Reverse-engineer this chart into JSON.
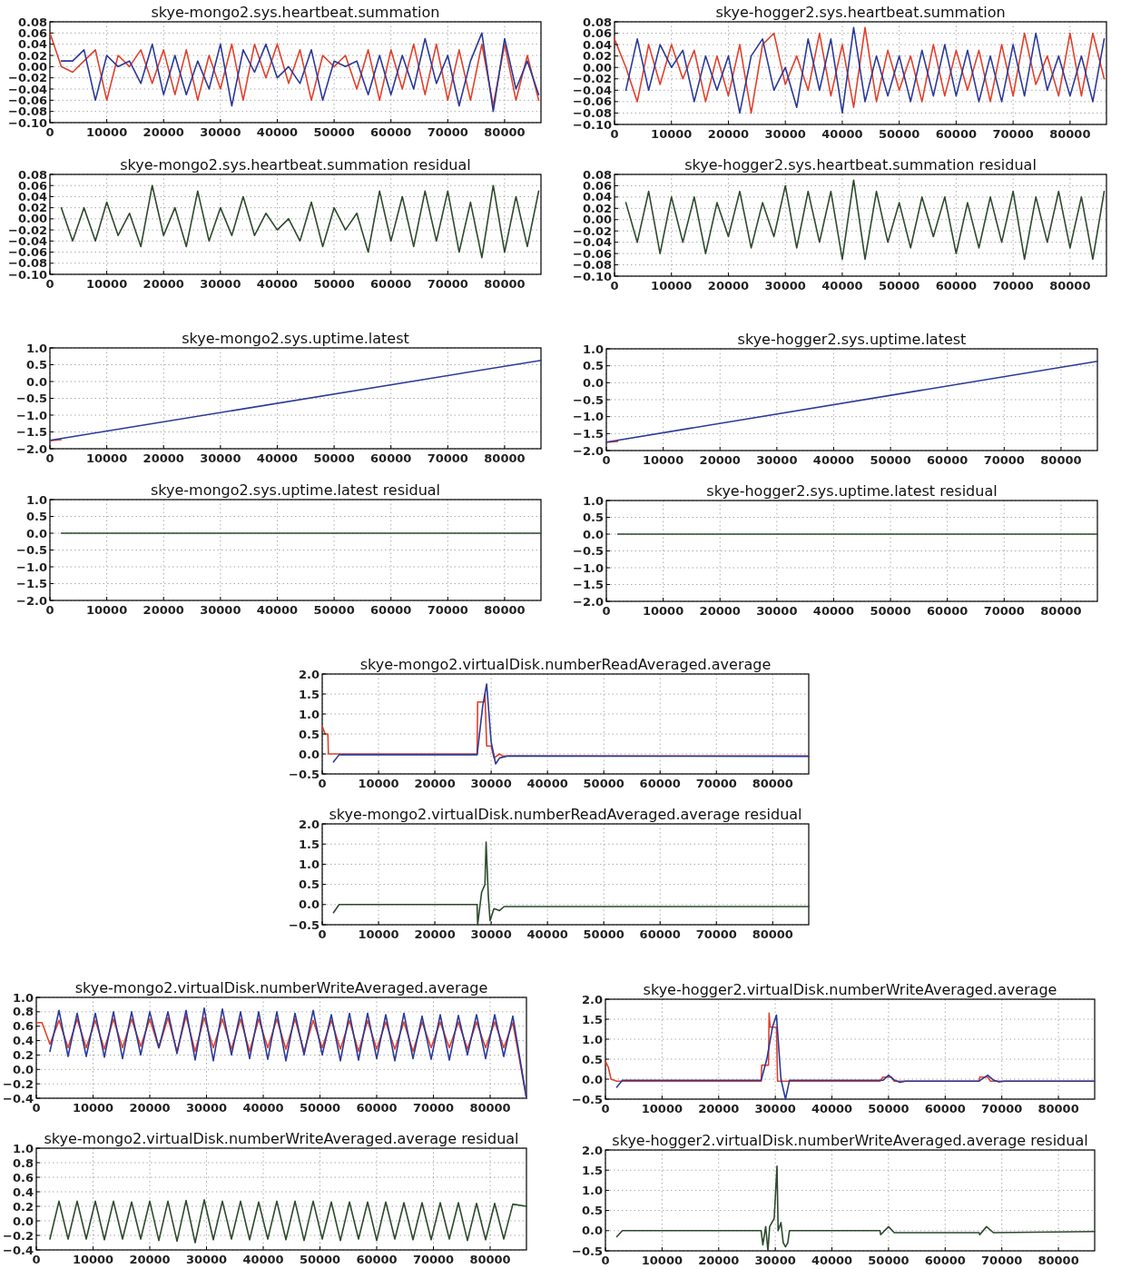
{
  "chart_data": [
    {
      "type": "line",
      "title": "skye-mongo2.sys.heartbeat.summation",
      "xlim": [
        0,
        86400
      ],
      "xticks": [
        0,
        10000,
        20000,
        30000,
        40000,
        50000,
        60000,
        70000,
        80000
      ],
      "ylim": [
        -0.1,
        0.08
      ],
      "yticks": [
        {
          "value": -0.1,
          "label": "−0.10"
        },
        {
          "value": -0.08,
          "label": "−0.08"
        },
        {
          "value": -0.06,
          "label": "−0.06"
        },
        {
          "value": -0.04,
          "label": "−0.04"
        },
        {
          "value": -0.02,
          "label": "−0.02"
        },
        {
          "value": 0,
          "label": "0.00"
        },
        {
          "value": 0.02,
          "label": "0.02"
        },
        {
          "value": 0.04,
          "label": "0.04"
        },
        {
          "value": 0.06,
          "label": "0.06"
        },
        {
          "value": 0.08,
          "label": "0.08"
        }
      ],
      "grid": true,
      "line_style": "solid",
      "series": [
        {
          "color": "#e0412c",
          "x": [
            0,
            2000,
            4000,
            6000,
            8000,
            10000,
            12000,
            14000,
            16000,
            18000,
            20000,
            22000,
            24000,
            26000,
            28000,
            30000,
            32000,
            34000,
            36000,
            38000,
            40000,
            42000,
            44000,
            46000,
            48000,
            50000,
            52000,
            54000,
            56000,
            58000,
            60000,
            62000,
            64000,
            66000,
            68000,
            70000,
            72000,
            74000,
            76000,
            78000,
            80000,
            82000,
            84000,
            86000
          ],
          "values": [
            0.06,
            0.0,
            -0.01,
            0.01,
            0.03,
            -0.06,
            0.02,
            0.0,
            0.03,
            -0.03,
            0.03,
            -0.05,
            0.03,
            -0.06,
            0.02,
            -0.04,
            0.04,
            -0.06,
            0.04,
            -0.02,
            0.04,
            -0.03,
            0.03,
            -0.06,
            0.02,
            0.0,
            0.02,
            -0.04,
            0.03,
            -0.06,
            0.03,
            -0.04,
            0.04,
            -0.05,
            0.04,
            -0.06,
            0.03,
            -0.06,
            0.04,
            -0.07,
            0.04,
            -0.06,
            0.02,
            -0.06
          ]
        },
        {
          "color": "#2b3a98",
          "x": [
            2000,
            4000,
            6000,
            8000,
            10000,
            12000,
            14000,
            16000,
            18000,
            20000,
            22000,
            24000,
            26000,
            28000,
            30000,
            32000,
            34000,
            36000,
            38000,
            40000,
            42000,
            44000,
            46000,
            48000,
            50000,
            52000,
            54000,
            56000,
            58000,
            60000,
            62000,
            64000,
            66000,
            68000,
            70000,
            72000,
            74000,
            76000,
            78000,
            80000,
            82000,
            84000,
            86000
          ],
          "values": [
            0.01,
            0.01,
            0.03,
            -0.06,
            0.02,
            0.0,
            0.01,
            -0.03,
            0.04,
            -0.05,
            0.02,
            -0.05,
            0.01,
            -0.04,
            0.04,
            -0.07,
            0.03,
            -0.01,
            0.04,
            -0.02,
            0.0,
            -0.03,
            0.03,
            -0.06,
            0.01,
            0.0,
            0.01,
            -0.05,
            0.02,
            -0.05,
            0.02,
            -0.04,
            0.05,
            -0.03,
            0.02,
            -0.07,
            0.01,
            0.06,
            -0.08,
            0.05,
            -0.04,
            0.01,
            -0.05
          ]
        }
      ]
    },
    {
      "type": "line",
      "title": "skye-hogger2.sys.heartbeat.summation",
      "xlim": [
        0,
        86400
      ],
      "xticks": [
        0,
        10000,
        20000,
        30000,
        40000,
        50000,
        60000,
        70000,
        80000
      ],
      "ylim": [
        -0.1,
        0.08
      ],
      "yticks": [
        {
          "value": -0.1,
          "label": "−0.10"
        },
        {
          "value": -0.08,
          "label": "−0.08"
        },
        {
          "value": -0.06,
          "label": "−0.06"
        },
        {
          "value": -0.04,
          "label": "−0.04"
        },
        {
          "value": -0.02,
          "label": "−0.02"
        },
        {
          "value": 0,
          "label": "0.00"
        },
        {
          "value": 0.02,
          "label": "0.02"
        },
        {
          "value": 0.04,
          "label": "0.04"
        },
        {
          "value": 0.06,
          "label": "0.06"
        },
        {
          "value": 0.08,
          "label": "0.08"
        }
      ],
      "grid": true,
      "line_style": "solid",
      "series": [
        {
          "color": "#e0412c",
          "x": [
            0,
            2000,
            4000,
            6000,
            8000,
            10000,
            12000,
            14000,
            16000,
            18000,
            20000,
            22000,
            24000,
            26000,
            28000,
            30000,
            32000,
            34000,
            36000,
            38000,
            40000,
            42000,
            44000,
            46000,
            48000,
            50000,
            52000,
            54000,
            56000,
            58000,
            60000,
            62000,
            64000,
            66000,
            68000,
            70000,
            72000,
            74000,
            76000,
            78000,
            80000,
            82000,
            84000,
            86000
          ],
          "values": [
            0.05,
            0.0,
            -0.06,
            0.04,
            -0.03,
            0.04,
            -0.02,
            0.03,
            -0.06,
            0.02,
            -0.05,
            0.04,
            -0.08,
            0.04,
            0.06,
            -0.03,
            0.02,
            -0.04,
            0.06,
            -0.05,
            0.04,
            -0.07,
            0.07,
            -0.06,
            0.03,
            -0.04,
            0.02,
            -0.06,
            0.04,
            -0.05,
            0.03,
            -0.04,
            0.03,
            -0.06,
            0.04,
            -0.05,
            0.06,
            -0.03,
            0.02,
            -0.05,
            0.06,
            -0.05,
            0.06,
            -0.02
          ]
        },
        {
          "color": "#2b3a98",
          "x": [
            2000,
            4000,
            6000,
            8000,
            10000,
            12000,
            14000,
            16000,
            18000,
            20000,
            22000,
            24000,
            26000,
            28000,
            30000,
            32000,
            34000,
            36000,
            38000,
            40000,
            42000,
            44000,
            46000,
            48000,
            50000,
            52000,
            54000,
            56000,
            58000,
            60000,
            62000,
            64000,
            66000,
            68000,
            70000,
            72000,
            74000,
            76000,
            78000,
            80000,
            82000,
            84000,
            86000
          ],
          "values": [
            -0.04,
            0.05,
            -0.04,
            0.04,
            0.0,
            0.03,
            -0.06,
            0.02,
            -0.04,
            0.02,
            -0.08,
            0.02,
            0.05,
            -0.04,
            0.0,
            -0.07,
            0.05,
            -0.04,
            0.05,
            -0.08,
            0.07,
            -0.06,
            0.02,
            -0.05,
            0.02,
            -0.06,
            0.03,
            -0.05,
            0.04,
            -0.05,
            0.03,
            -0.06,
            0.02,
            -0.06,
            0.04,
            -0.05,
            0.06,
            -0.04,
            0.02,
            -0.05,
            0.02,
            -0.06,
            0.05
          ]
        }
      ]
    },
    {
      "type": "line",
      "title": "skye-mongo2.sys.heartbeat.summation residual",
      "xlim": [
        0,
        86400
      ],
      "xticks": [
        0,
        10000,
        20000,
        30000,
        40000,
        50000,
        60000,
        70000,
        80000
      ],
      "ylim": [
        -0.1,
        0.08
      ],
      "yticks": [
        {
          "value": -0.1,
          "label": "−0.10"
        },
        {
          "value": -0.08,
          "label": "−0.08"
        },
        {
          "value": -0.06,
          "label": "−0.06"
        },
        {
          "value": -0.04,
          "label": "−0.04"
        },
        {
          "value": -0.02,
          "label": "−0.02"
        },
        {
          "value": 0,
          "label": "0.00"
        },
        {
          "value": 0.02,
          "label": "0.02"
        },
        {
          "value": 0.04,
          "label": "0.04"
        },
        {
          "value": 0.06,
          "label": "0.06"
        },
        {
          "value": 0.08,
          "label": "0.08"
        }
      ],
      "grid": true,
      "line_style": "solid",
      "series": [
        {
          "color": "#2e4a2e",
          "x": [
            2000,
            4000,
            6000,
            8000,
            10000,
            12000,
            14000,
            16000,
            18000,
            20000,
            22000,
            24000,
            26000,
            28000,
            30000,
            32000,
            34000,
            36000,
            38000,
            40000,
            42000,
            44000,
            46000,
            48000,
            50000,
            52000,
            54000,
            56000,
            58000,
            60000,
            62000,
            64000,
            66000,
            68000,
            70000,
            72000,
            74000,
            76000,
            78000,
            80000,
            82000,
            84000,
            86000
          ],
          "values": [
            0.02,
            -0.04,
            0.02,
            -0.04,
            0.03,
            -0.03,
            0.01,
            -0.05,
            0.06,
            -0.03,
            0.02,
            -0.05,
            0.05,
            -0.04,
            0.02,
            -0.03,
            0.04,
            -0.03,
            0.01,
            -0.02,
            0.0,
            -0.04,
            0.03,
            -0.05,
            0.02,
            -0.02,
            0.01,
            -0.06,
            0.05,
            -0.04,
            0.04,
            -0.05,
            0.05,
            -0.04,
            0.05,
            -0.06,
            0.03,
            -0.07,
            0.06,
            -0.06,
            0.04,
            -0.05,
            0.05
          ]
        }
      ]
    },
    {
      "type": "line",
      "title": "skye-hogger2.sys.heartbeat.summation residual",
      "xlim": [
        0,
        86400
      ],
      "xticks": [
        0,
        10000,
        20000,
        30000,
        40000,
        50000,
        60000,
        70000,
        80000
      ],
      "ylim": [
        -0.1,
        0.08
      ],
      "yticks": [
        {
          "value": -0.1,
          "label": "−0.10"
        },
        {
          "value": -0.08,
          "label": "−0.08"
        },
        {
          "value": -0.06,
          "label": "−0.06"
        },
        {
          "value": -0.04,
          "label": "−0.04"
        },
        {
          "value": -0.02,
          "label": "−0.02"
        },
        {
          "value": 0,
          "label": "0.00"
        },
        {
          "value": 0.02,
          "label": "0.02"
        },
        {
          "value": 0.04,
          "label": "0.04"
        },
        {
          "value": 0.06,
          "label": "0.06"
        },
        {
          "value": 0.08,
          "label": "0.08"
        }
      ],
      "grid": true,
      "line_style": "solid",
      "series": [
        {
          "color": "#2e4a2e",
          "x": [
            2000,
            4000,
            6000,
            8000,
            10000,
            12000,
            14000,
            16000,
            18000,
            20000,
            22000,
            24000,
            26000,
            28000,
            30000,
            32000,
            34000,
            36000,
            38000,
            40000,
            42000,
            44000,
            46000,
            48000,
            50000,
            52000,
            54000,
            56000,
            58000,
            60000,
            62000,
            64000,
            66000,
            68000,
            70000,
            72000,
            74000,
            76000,
            78000,
            80000,
            82000,
            84000,
            86000
          ],
          "values": [
            0.03,
            -0.04,
            0.05,
            -0.06,
            0.04,
            -0.04,
            0.04,
            -0.06,
            0.03,
            -0.03,
            0.05,
            -0.05,
            0.03,
            -0.03,
            0.06,
            -0.05,
            0.05,
            -0.04,
            0.05,
            -0.07,
            0.07,
            -0.07,
            0.05,
            -0.04,
            0.03,
            -0.05,
            0.04,
            -0.03,
            0.04,
            -0.06,
            0.03,
            -0.05,
            0.04,
            -0.04,
            0.05,
            -0.07,
            0.04,
            -0.04,
            0.05,
            -0.05,
            0.04,
            -0.07,
            0.05
          ]
        }
      ]
    },
    {
      "type": "line",
      "title": "skye-mongo2.sys.uptime.latest",
      "xlim": [
        0,
        86400
      ],
      "xticks": [
        0,
        10000,
        20000,
        30000,
        40000,
        50000,
        60000,
        70000,
        80000
      ],
      "ylim": [
        -2,
        1
      ],
      "yticks": [
        {
          "value": -2,
          "label": "−2.0"
        },
        {
          "value": -1.5,
          "label": "−1.5"
        },
        {
          "value": -1,
          "label": "−1.0"
        },
        {
          "value": -0.5,
          "label": "−0.5"
        },
        {
          "value": 0,
          "label": "0.0"
        },
        {
          "value": 0.5,
          "label": "0.5"
        },
        {
          "value": 1,
          "label": "1.0"
        }
      ],
      "grid": true,
      "line_style": "solid",
      "series": [
        {
          "color": "#e0412c",
          "x": [
            0,
            2000
          ],
          "values": [
            -1.76,
            -1.73
          ]
        },
        {
          "color": "#2b3a98",
          "x": [
            0,
            86400
          ],
          "values": [
            -1.75,
            0.63
          ]
        }
      ]
    },
    {
      "type": "line",
      "title": "skye-hogger2.sys.uptime.latest",
      "xlim": [
        0,
        86400
      ],
      "xticks": [
        0,
        10000,
        20000,
        30000,
        40000,
        50000,
        60000,
        70000,
        80000
      ],
      "ylim": [
        -2,
        1
      ],
      "yticks": [
        {
          "value": -2,
          "label": "−2.0"
        },
        {
          "value": -1.5,
          "label": "−1.5"
        },
        {
          "value": -1,
          "label": "−1.0"
        },
        {
          "value": -0.5,
          "label": "−0.5"
        },
        {
          "value": 0,
          "label": "0.0"
        },
        {
          "value": 0.5,
          "label": "0.5"
        },
        {
          "value": 1,
          "label": "1.0"
        }
      ],
      "grid": true,
      "line_style": "solid",
      "series": [
        {
          "color": "#e0412c",
          "x": [
            0,
            2000
          ],
          "values": [
            -1.76,
            -1.73
          ]
        },
        {
          "color": "#2b3a98",
          "x": [
            0,
            86400
          ],
          "values": [
            -1.75,
            0.63
          ]
        }
      ]
    },
    {
      "type": "line",
      "title": "skye-mongo2.sys.uptime.latest residual",
      "xlim": [
        0,
        86400
      ],
      "xticks": [
        0,
        10000,
        20000,
        30000,
        40000,
        50000,
        60000,
        70000,
        80000
      ],
      "ylim": [
        -2,
        1
      ],
      "yticks": [
        {
          "value": -2,
          "label": "−2.0"
        },
        {
          "value": -1.5,
          "label": "−1.5"
        },
        {
          "value": -1,
          "label": "−1.0"
        },
        {
          "value": -0.5,
          "label": "−0.5"
        },
        {
          "value": 0,
          "label": "0.0"
        },
        {
          "value": 0.5,
          "label": "0.5"
        },
        {
          "value": 1,
          "label": "1.0"
        }
      ],
      "grid": true,
      "line_style": "solid",
      "series": [
        {
          "color": "#2e4a2e",
          "x": [
            2000,
            86400
          ],
          "values": [
            0.0,
            0.0
          ]
        }
      ]
    },
    {
      "type": "line",
      "title": "skye-hogger2.sys.uptime.latest residual",
      "xlim": [
        0,
        86400
      ],
      "xticks": [
        0,
        10000,
        20000,
        30000,
        40000,
        50000,
        60000,
        70000,
        80000
      ],
      "ylim": [
        -2,
        1
      ],
      "yticks": [
        {
          "value": -2,
          "label": "−2.0"
        },
        {
          "value": -1.5,
          "label": "−1.5"
        },
        {
          "value": -1,
          "label": "−1.0"
        },
        {
          "value": -0.5,
          "label": "−0.5"
        },
        {
          "value": 0,
          "label": "0.0"
        },
        {
          "value": 0.5,
          "label": "0.5"
        },
        {
          "value": 1,
          "label": "1.0"
        }
      ],
      "grid": true,
      "line_style": "solid",
      "series": [
        {
          "color": "#2e4a2e",
          "x": [
            2000,
            86400
          ],
          "values": [
            0.0,
            0.0
          ]
        }
      ]
    },
    {
      "type": "line",
      "title": "skye-mongo2.virtualDisk.numberReadAveraged.average",
      "xlim": [
        0,
        86400
      ],
      "xticks": [
        0,
        10000,
        20000,
        30000,
        40000,
        50000,
        60000,
        70000,
        80000
      ],
      "ylim": [
        -0.5,
        2
      ],
      "yticks": [
        {
          "value": -0.5,
          "label": "−0.5"
        },
        {
          "value": 0,
          "label": "0.0"
        },
        {
          "value": 0.5,
          "label": "0.5"
        },
        {
          "value": 1,
          "label": "1.0"
        },
        {
          "value": 1.5,
          "label": "1.5"
        },
        {
          "value": 2,
          "label": "2.0"
        }
      ],
      "grid": true,
      "line_style": "solid",
      "series": [
        {
          "color": "#e0412c",
          "x": [
            0,
            500,
            1000,
            1100,
            27500,
            27600,
            28800,
            28900,
            29200,
            30000,
            30500,
            31500,
            32000,
            86400
          ],
          "values": [
            0.7,
            0.5,
            0.5,
            0.0,
            0.0,
            1.3,
            1.3,
            1.5,
            0.2,
            0.2,
            -0.1,
            0.0,
            -0.05,
            -0.05
          ]
        },
        {
          "color": "#2b3a98",
          "x": [
            2000,
            3000,
            27500,
            28500,
            29200,
            30000,
            30800,
            31500,
            33000,
            86400
          ],
          "values": [
            -0.2,
            -0.02,
            -0.02,
            1.2,
            1.75,
            0.3,
            -0.25,
            -0.1,
            -0.05,
            -0.06
          ]
        }
      ]
    },
    {
      "type": "line",
      "title": "skye-mongo2.virtualDisk.numberReadAveraged.average residual",
      "xlim": [
        0,
        86400
      ],
      "xticks": [
        0,
        10000,
        20000,
        30000,
        40000,
        50000,
        60000,
        70000,
        80000
      ],
      "ylim": [
        -0.5,
        2
      ],
      "yticks": [
        {
          "value": -0.5,
          "label": "−0.5"
        },
        {
          "value": 0,
          "label": "0.0"
        },
        {
          "value": 0.5,
          "label": "0.5"
        },
        {
          "value": 1,
          "label": "1.0"
        },
        {
          "value": 1.5,
          "label": "1.5"
        },
        {
          "value": 2,
          "label": "2.0"
        }
      ],
      "grid": true,
      "line_style": "solid",
      "series": [
        {
          "color": "#2e4a2e",
          "x": [
            2000,
            3000,
            27500,
            27600,
            28300,
            28900,
            29100,
            29500,
            29800,
            30500,
            31500,
            32300,
            86400
          ],
          "values": [
            -0.2,
            0.0,
            0.0,
            -0.5,
            0.3,
            0.5,
            1.55,
            0.2,
            -0.4,
            -0.1,
            -0.15,
            -0.05,
            -0.05
          ]
        }
      ]
    },
    {
      "type": "line",
      "title": "skye-mongo2.virtualDisk.numberWriteAveraged.average",
      "xlim": [
        0,
        86400
      ],
      "xticks": [
        0,
        10000,
        20000,
        30000,
        40000,
        50000,
        60000,
        70000,
        80000
      ],
      "ylim": [
        -0.4,
        1
      ],
      "yticks": [
        {
          "value": -0.4,
          "label": "−0.4"
        },
        {
          "value": -0.2,
          "label": "−0.2"
        },
        {
          "value": 0,
          "label": "0.0"
        },
        {
          "value": 0.2,
          "label": "0.2"
        },
        {
          "value": 0.4,
          "label": "0.4"
        },
        {
          "value": 0.6,
          "label": "0.6"
        },
        {
          "value": 0.8,
          "label": "0.8"
        },
        {
          "value": 1,
          "label": "1.0"
        }
      ],
      "grid": true,
      "line_style": "solid",
      "series": [
        {
          "color": "#e0412c",
          "x": [
            0,
            1000,
            2400,
            4000,
            5600,
            7200,
            8800,
            10400,
            12000,
            13600,
            15200,
            16800,
            18400,
            20000,
            21600,
            23200,
            24800,
            26400,
            28000,
            29600,
            31200,
            32800,
            34400,
            36000,
            37600,
            39200,
            40800,
            42400,
            44000,
            45600,
            47200,
            48800,
            50400,
            52000,
            53600,
            55200,
            56800,
            58400,
            60000,
            61600,
            63200,
            64800,
            66400,
            68000,
            69600,
            71200,
            72800,
            74400,
            76000,
            77600,
            79200,
            80800,
            82400,
            84000,
            86400
          ],
          "values": [
            0.65,
            0.65,
            0.35,
            0.68,
            0.3,
            0.7,
            0.3,
            0.68,
            0.28,
            0.7,
            0.3,
            0.7,
            0.32,
            0.7,
            0.3,
            0.72,
            0.25,
            0.74,
            0.25,
            0.72,
            0.3,
            0.7,
            0.28,
            0.7,
            0.25,
            0.7,
            0.3,
            0.7,
            0.28,
            0.7,
            0.25,
            0.68,
            0.3,
            0.68,
            0.28,
            0.68,
            0.25,
            0.68,
            0.28,
            0.66,
            0.28,
            0.66,
            0.25,
            0.66,
            0.3,
            0.66,
            0.3,
            0.66,
            0.28,
            0.66,
            0.3,
            0.66,
            0.3,
            0.65,
            -0.4
          ]
        },
        {
          "color": "#2b3a98",
          "x": [
            2400,
            4000,
            5600,
            7200,
            8800,
            10400,
            12000,
            13600,
            15200,
            16800,
            18400,
            20000,
            21600,
            23200,
            24800,
            26400,
            28000,
            29600,
            31200,
            32800,
            34400,
            36000,
            37600,
            39200,
            40800,
            42400,
            44000,
            45600,
            47200,
            48800,
            50400,
            52000,
            53600,
            55200,
            56800,
            58400,
            60000,
            61600,
            63200,
            64800,
            66400,
            68000,
            69600,
            71200,
            72800,
            74400,
            76000,
            77600,
            79200,
            80800,
            82400,
            84000,
            86400
          ],
          "values": [
            0.25,
            0.82,
            0.18,
            0.78,
            0.18,
            0.78,
            0.17,
            0.8,
            0.15,
            0.8,
            0.2,
            0.8,
            0.3,
            0.8,
            0.22,
            0.82,
            0.13,
            0.85,
            0.12,
            0.84,
            0.2,
            0.8,
            0.15,
            0.8,
            0.14,
            0.8,
            0.12,
            0.78,
            0.2,
            0.82,
            0.2,
            0.76,
            0.12,
            0.78,
            0.13,
            0.78,
            0.15,
            0.76,
            0.12,
            0.78,
            0.15,
            0.74,
            0.14,
            0.76,
            0.13,
            0.75,
            0.2,
            0.76,
            0.15,
            0.76,
            0.18,
            0.74,
            -0.4
          ]
        }
      ]
    },
    {
      "type": "line",
      "title": "skye-hogger2.virtualDisk.numberWriteAveraged.average",
      "xlim": [
        0,
        86400
      ],
      "xticks": [
        0,
        10000,
        20000,
        30000,
        40000,
        50000,
        60000,
        70000,
        80000
      ],
      "ylim": [
        -0.5,
        2
      ],
      "yticks": [
        {
          "value": -0.5,
          "label": "−0.5"
        },
        {
          "value": 0,
          "label": "0.0"
        },
        {
          "value": 0.5,
          "label": "0.5"
        },
        {
          "value": 1,
          "label": "1.0"
        },
        {
          "value": 1.5,
          "label": "1.5"
        },
        {
          "value": 2,
          "label": "2.0"
        }
      ],
      "grid": true,
      "line_style": "solid",
      "series": [
        {
          "color": "#e0412c",
          "x": [
            0,
            500,
            1000,
            2000,
            27500,
            27600,
            28800,
            28900,
            29100,
            30200,
            30400,
            48500,
            49000,
            50500,
            51000,
            66000,
            66100,
            67500,
            68000,
            86400
          ],
          "values": [
            0.45,
            0.3,
            0.0,
            -0.05,
            -0.05,
            0.35,
            0.35,
            1.65,
            1.3,
            1.3,
            -0.05,
            -0.05,
            0.05,
            0.05,
            -0.05,
            -0.05,
            0.05,
            0.05,
            -0.05,
            -0.05
          ]
        },
        {
          "color": "#2b3a98",
          "x": [
            2000,
            3000,
            27500,
            28500,
            29500,
            30200,
            31000,
            31800,
            32500,
            49000,
            50000,
            51000,
            52000,
            53000,
            66000,
            67500,
            68500,
            69500,
            70500,
            86400
          ],
          "values": [
            -0.2,
            -0.03,
            -0.03,
            0.5,
            1.3,
            1.6,
            0.0,
            -0.5,
            -0.03,
            -0.03,
            0.1,
            -0.02,
            -0.08,
            -0.05,
            -0.05,
            0.1,
            -0.02,
            -0.07,
            -0.05,
            -0.05
          ]
        }
      ]
    },
    {
      "type": "line",
      "title": "skye-mongo2.virtualDisk.numberWriteAveraged.average residual",
      "xlim": [
        0,
        86400
      ],
      "xticks": [
        0,
        10000,
        20000,
        30000,
        40000,
        50000,
        60000,
        70000,
        80000
      ],
      "ylim": [
        -0.4,
        1
      ],
      "yticks": [
        {
          "value": -0.4,
          "label": "−0.4"
        },
        {
          "value": -0.2,
          "label": "−0.2"
        },
        {
          "value": 0,
          "label": "0.0"
        },
        {
          "value": 0.2,
          "label": "0.2"
        },
        {
          "value": 0.4,
          "label": "0.4"
        },
        {
          "value": 0.6,
          "label": "0.6"
        },
        {
          "value": 0.8,
          "label": "0.8"
        },
        {
          "value": 1,
          "label": "1.0"
        }
      ],
      "grid": true,
      "line_style": "solid",
      "series": [
        {
          "color": "#2e4a2e",
          "x": [
            2400,
            4000,
            5600,
            7200,
            8800,
            10400,
            12000,
            13600,
            15200,
            16800,
            18400,
            20000,
            21600,
            23200,
            24800,
            26400,
            28000,
            29600,
            31200,
            32800,
            34400,
            36000,
            37600,
            39200,
            40800,
            42400,
            44000,
            45600,
            47200,
            48800,
            50400,
            52000,
            53600,
            55200,
            56800,
            58400,
            60000,
            61600,
            63200,
            64800,
            66400,
            68000,
            69600,
            71200,
            72800,
            74400,
            76000,
            77600,
            79200,
            80800,
            82400,
            84000,
            86400
          ],
          "values": [
            -0.25,
            0.27,
            -0.25,
            0.27,
            -0.25,
            0.27,
            -0.26,
            0.27,
            -0.25,
            0.26,
            -0.25,
            0.27,
            -0.27,
            0.27,
            -0.28,
            0.28,
            -0.3,
            0.29,
            -0.26,
            0.27,
            -0.25,
            0.27,
            -0.26,
            0.26,
            -0.25,
            0.27,
            -0.26,
            0.27,
            -0.27,
            0.27,
            -0.25,
            0.26,
            -0.27,
            0.26,
            -0.25,
            0.26,
            -0.27,
            0.26,
            -0.25,
            0.25,
            -0.26,
            0.25,
            -0.26,
            0.25,
            -0.25,
            0.25,
            -0.27,
            0.24,
            -0.26,
            0.24,
            -0.25,
            0.23,
            0.2
          ]
        }
      ]
    },
    {
      "type": "line",
      "title": "skye-hogger2.virtualDisk.numberWriteAveraged.average residual",
      "xlim": [
        0,
        86400
      ],
      "xticks": [
        0,
        10000,
        20000,
        30000,
        40000,
        50000,
        60000,
        70000,
        80000
      ],
      "ylim": [
        -0.5,
        2
      ],
      "yticks": [
        {
          "value": -0.5,
          "label": "−0.5"
        },
        {
          "value": 0,
          "label": "0.0"
        },
        {
          "value": 0.5,
          "label": "0.5"
        },
        {
          "value": 1,
          "label": "1.0"
        },
        {
          "value": 1.5,
          "label": "1.5"
        },
        {
          "value": 2,
          "label": "2.0"
        }
      ],
      "grid": true,
      "line_style": "solid",
      "series": [
        {
          "color": "#2e4a2e",
          "x": [
            2000,
            3000,
            27500,
            27800,
            28300,
            28700,
            29000,
            29800,
            30300,
            30500,
            31000,
            31400,
            31800,
            32200,
            32500,
            48500,
            48600,
            50000,
            51000,
            66000,
            66100,
            67300,
            68500,
            86400
          ],
          "values": [
            -0.15,
            0.0,
            0.0,
            -0.35,
            0.1,
            -0.5,
            0.1,
            0.3,
            1.6,
            0.0,
            0.2,
            -0.3,
            -0.4,
            -0.3,
            0.0,
            0.0,
            -0.1,
            0.1,
            -0.05,
            -0.05,
            -0.1,
            0.1,
            -0.05,
            -0.02
          ]
        }
      ]
    }
  ]
}
